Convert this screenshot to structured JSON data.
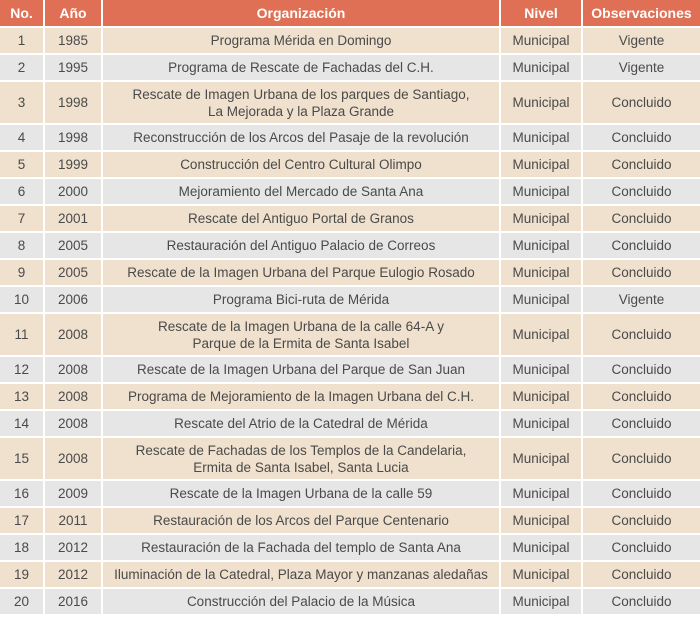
{
  "table": {
    "headers": [
      "No.",
      "Año",
      "Organización",
      "Nivel",
      "Observaciones"
    ],
    "rows": [
      {
        "no": "1",
        "year": "1985",
        "org": [
          "Programa Mérida en Domingo"
        ],
        "level": "Municipal",
        "obs": "Vigente"
      },
      {
        "no": "2",
        "year": "1995",
        "org": [
          "Programa de Rescate de Fachadas del C.H."
        ],
        "level": "Municipal",
        "obs": "Vigente"
      },
      {
        "no": "3",
        "year": "1998",
        "org": [
          "Rescate de Imagen Urbana de los parques de Santiago,",
          "La Mejorada y la Plaza Grande"
        ],
        "level": "Municipal",
        "obs": "Concluido"
      },
      {
        "no": "4",
        "year": "1998",
        "org": [
          "Reconstrucción de los Arcos del Pasaje de la revolución"
        ],
        "level": "Municipal",
        "obs": "Concluido"
      },
      {
        "no": "5",
        "year": "1999",
        "org": [
          "Construcción del Centro Cultural Olimpo"
        ],
        "level": "Municipal",
        "obs": "Concluido"
      },
      {
        "no": "6",
        "year": "2000",
        "org": [
          "Mejoramiento del Mercado de Santa Ana"
        ],
        "level": "Municipal",
        "obs": "Concluido"
      },
      {
        "no": "7",
        "year": "2001",
        "org": [
          "Rescate del Antiguo Portal de Granos"
        ],
        "level": "Municipal",
        "obs": "Concluido"
      },
      {
        "no": "8",
        "year": "2005",
        "org": [
          "Restauración del Antiguo Palacio de Correos"
        ],
        "level": "Municipal",
        "obs": "Concluido"
      },
      {
        "no": "9",
        "year": "2005",
        "org": [
          "Rescate de la Imagen Urbana del Parque Eulogio Rosado"
        ],
        "level": "Municipal",
        "obs": "Concluido"
      },
      {
        "no": "10",
        "year": "2006",
        "org": [
          "Programa Bici-ruta de Mérida"
        ],
        "level": "Municipal",
        "obs": "Vigente"
      },
      {
        "no": "11",
        "year": "2008",
        "org": [
          "Rescate de la Imagen Urbana de la calle 64-A y",
          "Parque de la Ermita de Santa Isabel"
        ],
        "level": "Municipal",
        "obs": "Concluido"
      },
      {
        "no": "12",
        "year": "2008",
        "org": [
          "Rescate de la Imagen Urbana del Parque de San Juan"
        ],
        "level": "Municipal",
        "obs": "Concluido"
      },
      {
        "no": "13",
        "year": "2008",
        "org": [
          "Programa de Mejoramiento de la Imagen Urbana del C.H."
        ],
        "level": "Municipal",
        "obs": "Concluido"
      },
      {
        "no": "14",
        "year": "2008",
        "org": [
          "Rescate del Atrio de la Catedral de Mérida"
        ],
        "level": "Municipal",
        "obs": "Concluido"
      },
      {
        "no": "15",
        "year": "2008",
        "org": [
          "Rescate de Fachadas de los Templos de la Candelaria,",
          "Ermita de Santa Isabel, Santa Lucia"
        ],
        "level": "Municipal",
        "obs": "Concluido"
      },
      {
        "no": "16",
        "year": "2009",
        "org": [
          "Rescate de la Imagen Urbana de la calle 59"
        ],
        "level": "Municipal",
        "obs": "Concluido"
      },
      {
        "no": "17",
        "year": "2011",
        "org": [
          "Restauración de los Arcos del Parque Centenario"
        ],
        "level": "Municipal",
        "obs": "Concluido"
      },
      {
        "no": "18",
        "year": "2012",
        "org": [
          "Restauración de la Fachada del templo de Santa Ana"
        ],
        "level": "Municipal",
        "obs": "Concluido"
      },
      {
        "no": "19",
        "year": "2012",
        "org": [
          "Iluminación de la Catedral, Plaza Mayor y manzanas aledañas"
        ],
        "level": "Municipal",
        "obs": "Concluido"
      },
      {
        "no": "20",
        "year": "2016",
        "org": [
          "Construcción del Palacio de la Música"
        ],
        "level": "Municipal",
        "obs": "Concluido"
      }
    ]
  },
  "colors": {
    "header_bg": "#e07055",
    "header_text": "#ffffff",
    "row_odd_bg": "#efe1cd",
    "row_even_bg": "#e6e6e6",
    "cell_text": "#4a4a4a"
  }
}
